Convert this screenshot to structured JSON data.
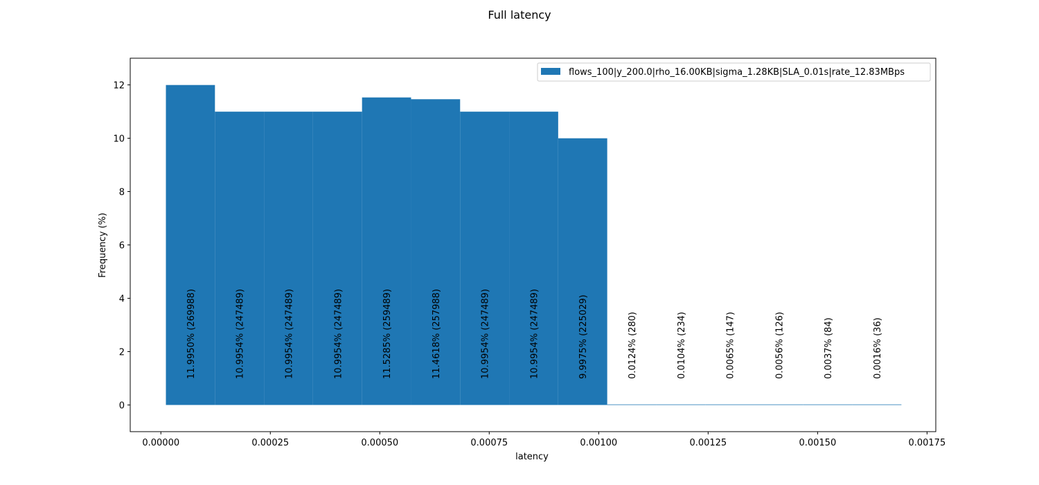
{
  "chart_data": {
    "type": "bar",
    "title": "Full latency",
    "xlabel": "latency",
    "ylabel": "Frequency (%)",
    "xlim": [
      -7e-05,
      0.00177
    ],
    "ylim": [
      -1,
      13
    ],
    "xticks": [
      0,
      0.00025,
      0.0005,
      0.00075,
      0.001,
      0.00125,
      0.0015,
      0.00175
    ],
    "xtick_labels": [
      "0.00000",
      "0.00025",
      "0.00050",
      "0.00075",
      "0.00100",
      "0.00125",
      "0.00150",
      "0.00175"
    ],
    "yticks": [
      0,
      2,
      4,
      6,
      8,
      10,
      12
    ],
    "ytick_labels": [
      "0",
      "2",
      "4",
      "6",
      "8",
      "10",
      "12"
    ],
    "grid": false,
    "legend_position": "top-right",
    "color": "#1f77b4",
    "series": [
      {
        "name": "flows_100|y_200.0|rho_16.00KB|sigma_1.28KB|SLA_0.01s|rate_12.83MBps",
        "bin_edges": [
          1.15e-05,
          0.0001235,
          0.0002355,
          0.0003475,
          0.0004595,
          0.0005715,
          0.0006835,
          0.0007955,
          0.0009075,
          0.0010195,
          0.0011315,
          0.0012435,
          0.0013555,
          0.0014675,
          0.0015795,
          0.0016915
        ],
        "values": [
          11.995,
          10.9954,
          10.9954,
          10.9954,
          11.5285,
          11.4618,
          10.9954,
          10.9954,
          9.9975,
          0.0124,
          0.0104,
          0.0065,
          0.0056,
          0.0037,
          0.0016
        ]
      }
    ],
    "bar_labels": [
      "11.9950% (269988)",
      "10.9954% (247489)",
      "10.9954% (247489)",
      "10.9954% (247489)",
      "11.5285% (259489)",
      "11.4618% (257988)",
      "10.9954% (247489)",
      "10.9954% (247489)",
      "9.9975% (225029)",
      "0.0124% (280)",
      "0.0104% (234)",
      "0.0065% (147)",
      "0.0056% (126)",
      "0.0037% (84)",
      "0.0016% (36)"
    ]
  }
}
